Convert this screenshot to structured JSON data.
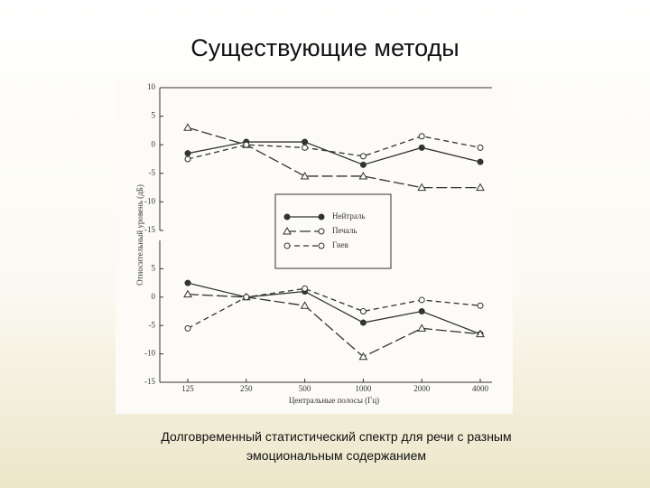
{
  "slide": {
    "title": "Существующие методы",
    "caption": [
      "Долговременный статистический спектр для речи с разным",
      "эмоциональным содержанием"
    ]
  },
  "chart_data": [
    {
      "type": "line",
      "y_label": "Относительный уровень (дБ)",
      "ylim": [
        -15,
        10
      ],
      "yticks": [
        10,
        5,
        0,
        -5,
        -10,
        -15
      ],
      "series": [
        {
          "name": "Нейтраль",
          "color": "#333333",
          "marker": "filled-circle",
          "dash": "solid",
          "values": [
            -1.5,
            0.5,
            0.5,
            -3.5,
            -0.5,
            -3
          ]
        },
        {
          "name": "Печаль",
          "color": "#333333",
          "marker": "triangle",
          "dash": "long-dash",
          "values": [
            3,
            0,
            -5.5,
            -5.5,
            -7.5,
            -7.5
          ]
        },
        {
          "name": "Гнев",
          "color": "#333333",
          "marker": "open-circle",
          "dash": "dash",
          "values": [
            -2.5,
            0,
            -0.5,
            -2,
            1.5,
            -0.5
          ]
        }
      ]
    },
    {
      "type": "line",
      "x_label": "Центральные полосы (Гц)",
      "categories": [
        "125",
        "250",
        "500",
        "1000",
        "2000",
        "4000"
      ],
      "ylim": [
        -15,
        10
      ],
      "yticks": [
        5,
        0,
        -5,
        -10,
        -15
      ],
      "series": [
        {
          "color": "#333333",
          "marker": "filled-circle",
          "dash": "solid",
          "values": [
            2.5,
            0,
            1,
            -4.5,
            -2.5,
            -6.5
          ]
        },
        {
          "color": "#333333",
          "marker": "triangle",
          "dash": "long-dash",
          "values": [
            0.5,
            0,
            -1.5,
            -10.5,
            -5.5,
            -6.5
          ]
        },
        {
          "color": "#333333",
          "marker": "open-circle",
          "dash": "dash",
          "values": [
            -5.5,
            0,
            1.5,
            -2.5,
            -0.5,
            -1.5
          ]
        }
      ]
    }
  ]
}
